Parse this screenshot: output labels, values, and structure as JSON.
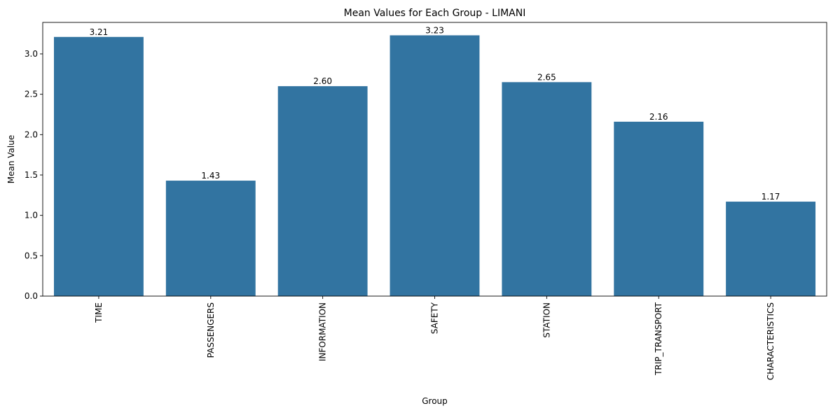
{
  "chart_data": {
    "type": "bar",
    "title": "Mean Values for Each Group - LIMANI",
    "xlabel": "Group",
    "ylabel": "Mean Value",
    "categories": [
      "TIME",
      "PASSENGERS",
      "INFORMATION",
      "SAFETY",
      "STATION",
      "TRIP_TRANSPORT",
      "CHARACTERISTICS"
    ],
    "values": [
      3.21,
      1.43,
      2.6,
      3.23,
      2.65,
      2.16,
      1.17
    ],
    "value_labels": [
      "3.21",
      "1.43",
      "2.60",
      "3.23",
      "2.65",
      "2.16",
      "1.17"
    ],
    "ylim": [
      0,
      3.39
    ],
    "yticks": [
      0.0,
      0.5,
      1.0,
      1.5,
      2.0,
      2.5,
      3.0
    ],
    "ytick_labels": [
      "0.0",
      "0.5",
      "1.0",
      "1.5",
      "2.0",
      "2.5",
      "3.0"
    ],
    "grid": false,
    "legend": "none",
    "bar_color": "#3274a1"
  }
}
